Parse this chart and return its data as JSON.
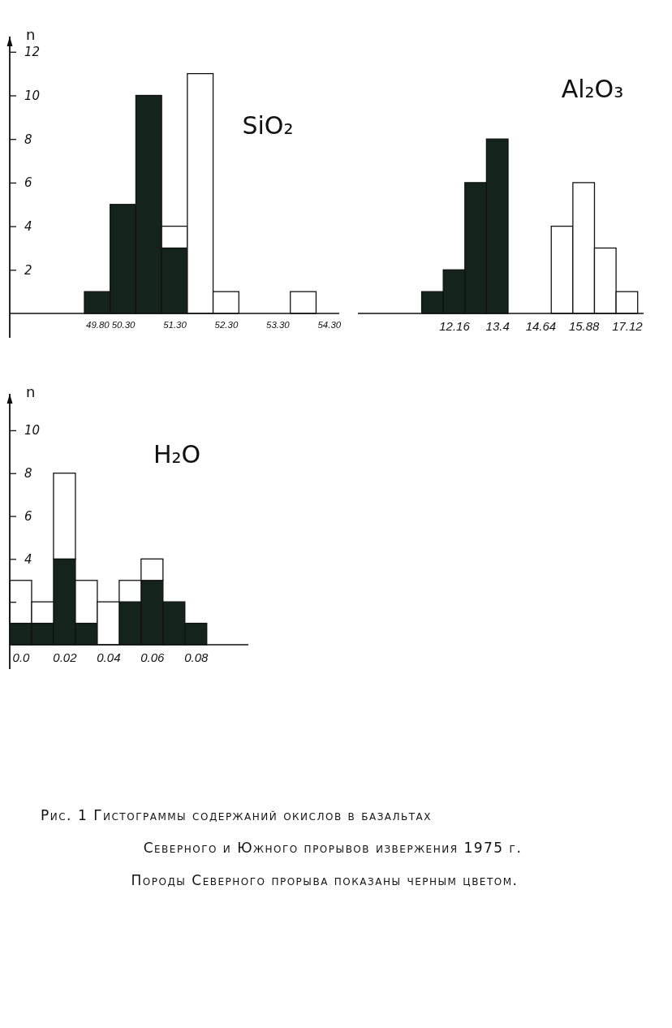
{
  "chart_data": [
    {
      "type": "bar",
      "title": "SiO₂",
      "ylabel": "n",
      "x": [
        49.8,
        50.3,
        50.8,
        51.3,
        51.8,
        52.3,
        52.8,
        53.3,
        53.8
      ],
      "stacked": true,
      "series": [
        {
          "color": "#14241c",
          "values": [
            1,
            5,
            10,
            3,
            0,
            0,
            0,
            0,
            0
          ]
        },
        {
          "color": "#ffffff",
          "values": [
            0,
            0,
            0,
            1,
            11,
            1,
            0,
            0,
            1
          ]
        }
      ],
      "xlim": [
        48.1,
        54.5
      ],
      "xticks": [
        {
          "value": 49.8,
          "label": "49.80"
        },
        {
          "value": 50.3,
          "label": "50.30"
        },
        {
          "value": 51.3,
          "label": "51.30"
        },
        {
          "value": 52.3,
          "label": "52.30"
        },
        {
          "value": 53.3,
          "label": "53.30"
        },
        {
          "value": 54.3,
          "label": "54.30"
        }
      ],
      "ylim": [
        0,
        12.7
      ],
      "yticks": [
        2,
        4,
        6,
        8,
        10,
        12
      ],
      "grid": false,
      "annotations": [
        "Рис. 1    Гистограммы содержаний окислов в базальтах",
        "Северного и Южного прорывов извержения 1975 г.",
        "Породы Северного прорыва показаны черным цветом."
      ]
    },
    {
      "type": "bar",
      "title": "Al₂O₃",
      "x": [
        11.54,
        12.16,
        12.78,
        13.4,
        14.02,
        14.64,
        15.26,
        15.88,
        16.5,
        17.12
      ],
      "stacked": true,
      "series": [
        {
          "color": "#14241c",
          "values": [
            1,
            2,
            6,
            8,
            0,
            0,
            0,
            0,
            0,
            0
          ]
        },
        {
          "color": "#ffffff",
          "values": [
            0,
            0,
            0,
            0,
            0,
            0,
            4,
            6,
            3,
            1
          ]
        }
      ],
      "xlim": [
        9.4,
        17.6
      ],
      "xticks": [
        12.16,
        13.4,
        14.64,
        15.88,
        17.12
      ],
      "ylim": [
        0,
        12
      ],
      "yticks": [
        2,
        4,
        6,
        8,
        10,
        12
      ],
      "tick_labels": "x",
      "grid": false
    },
    {
      "type": "bar",
      "title": "H₂O",
      "ylabel": "n",
      "x": [
        0,
        0.01,
        0.02,
        0.03,
        0.04,
        0.05,
        0.06,
        0.07,
        0.08
      ],
      "stacked": true,
      "series": [
        {
          "color": "#14241c",
          "values": [
            1,
            1,
            4,
            1,
            0,
            2,
            3,
            2,
            1
          ]
        },
        {
          "color": "#ffffff",
          "values": [
            2,
            1,
            4,
            2,
            2,
            1,
            1,
            0,
            0
          ]
        }
      ],
      "xlim": [
        -0.005,
        0.104
      ],
      "xticks": [
        {
          "value": 0,
          "label": "0.0"
        },
        {
          "value": 0.02,
          "label": "0.02"
        },
        {
          "value": 0.04,
          "label": "0.04"
        },
        {
          "value": 0.06,
          "label": "0.06"
        },
        {
          "value": 0.08,
          "label": "0.08"
        }
      ],
      "ylim": [
        0,
        11.7
      ],
      "yticks": [
        {
          "value": 2,
          "label": null
        },
        4,
        6,
        8,
        10
      ],
      "grid": false
    }
  ]
}
